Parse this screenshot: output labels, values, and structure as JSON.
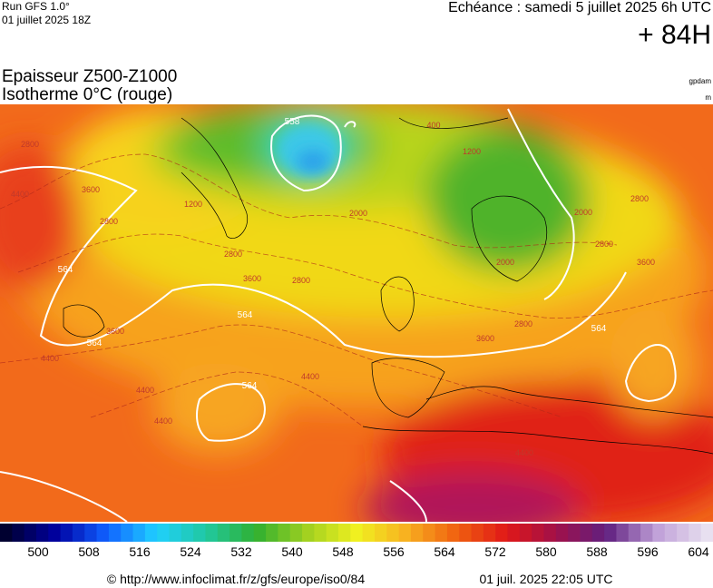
{
  "header": {
    "run": "Run GFS 1.0°",
    "run_date": "01 juillet 2025 18Z",
    "valid": "Echéance : samedi 5 juillet 2025 6h UTC",
    "lead": "+ 84H"
  },
  "map": {
    "title": "Epaisseur Z500-Z1000",
    "subtitle": "Isotherme 0°C (rouge)",
    "unit_thickness": "gpdam",
    "unit_iso": "m",
    "thickness_labels": [
      564,
      564,
      564,
      564,
      564,
      558
    ],
    "iso_labels": [
      4400,
      3600,
      2800,
      3600,
      2800,
      2800,
      2000,
      2000,
      2800,
      3600,
      1200,
      400,
      4400,
      4400,
      4400,
      4400,
      3600,
      2800,
      2800,
      3600,
      2800,
      4400,
      1200,
      2000
    ]
  },
  "colorbar": {
    "ticks": [
      500,
      508,
      516,
      524,
      532,
      540,
      548,
      556,
      564,
      572,
      580,
      588,
      596,
      604
    ]
  },
  "footer": {
    "url": "© http://www.infoclimat.fr/z/gfs/europe/iso0/84",
    "timestamp": "01 juil. 2025 22:05 UTC"
  }
}
